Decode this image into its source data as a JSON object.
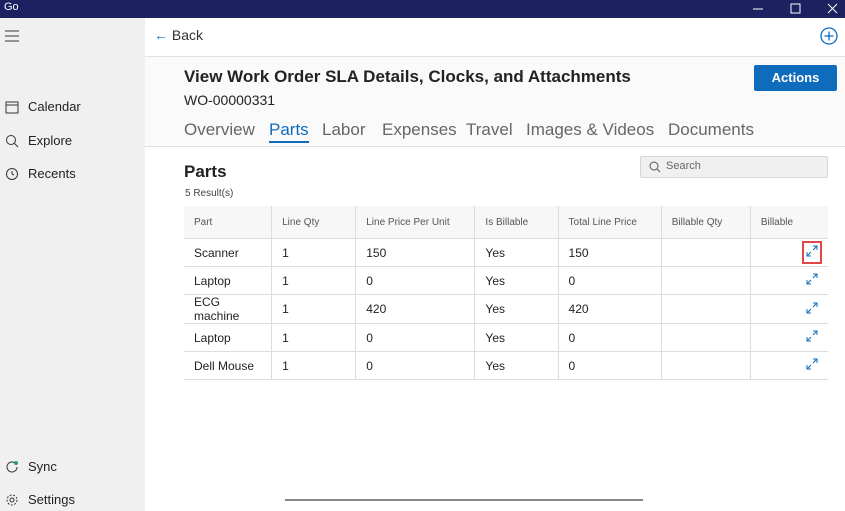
{
  "window": {
    "title": "Go"
  },
  "nav": {
    "items": [
      "Calendar",
      "Explore",
      "Recents"
    ],
    "bottom": [
      "Sync",
      "Settings"
    ]
  },
  "topbar": {
    "back": "Back"
  },
  "header": {
    "title": "View Work Order SLA Details, Clocks, and Attachments",
    "subtitle": "WO-00000331",
    "action": "Actions"
  },
  "tabs": {
    "items": [
      "Overview",
      "Parts",
      "Labor",
      "Expenses",
      "Travel",
      "Images & Videos",
      "Documents"
    ],
    "active": 1
  },
  "section": {
    "title": "Parts",
    "count": "5 Result(s)",
    "search": "Search"
  },
  "table": {
    "columns": [
      "Part",
      "Line Qty",
      "Line Price Per Unit",
      "Is Billable",
      "Total Line Price",
      "Billable Qty",
      "Billable"
    ],
    "rows": [
      [
        "Scanner",
        "1",
        "150",
        "Yes",
        "150"
      ],
      [
        "Laptop",
        "1",
        "0",
        "Yes",
        "0"
      ],
      [
        "ECG machine",
        "1",
        "420",
        "Yes",
        "420"
      ],
      [
        "Laptop",
        "1",
        "0",
        "Yes",
        "0"
      ],
      [
        "Dell Mouse",
        "1",
        "0",
        "Yes",
        "0"
      ]
    ]
  }
}
